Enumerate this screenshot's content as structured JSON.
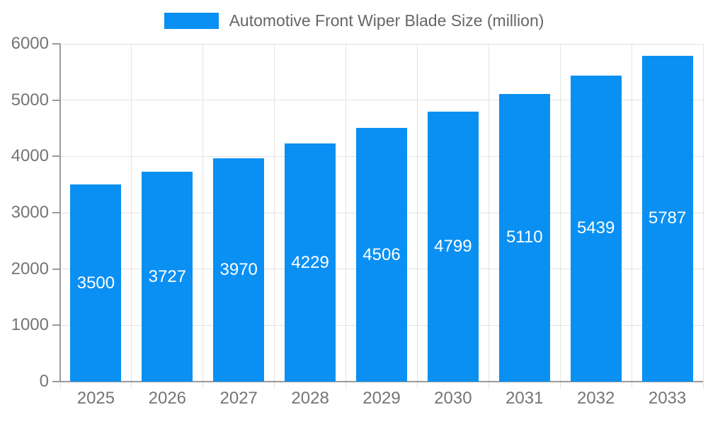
{
  "legend": {
    "label": "Automotive Front Wiper Blade Size (million)",
    "swatch_color": "#0a90f2"
  },
  "colors": {
    "bar": "#0a90f2",
    "axis": "#9a9a9a",
    "grid": "#e2e2e2",
    "tick_label": "#757575",
    "legend_label": "#666666",
    "value_label": "#ffffff",
    "background": "#ffffff"
  },
  "chart_data": {
    "type": "bar",
    "title": "Automotive Front Wiper Blade Size (million)",
    "categories": [
      "2025",
      "2026",
      "2027",
      "2028",
      "2029",
      "2030",
      "2031",
      "2032",
      "2033"
    ],
    "values": [
      3500,
      3727,
      3970,
      4229,
      4506,
      4799,
      5110,
      5439,
      5787
    ],
    "xlabel": "",
    "ylabel": "",
    "ylim": [
      0,
      6000
    ],
    "yticks": [
      0,
      1000,
      2000,
      3000,
      4000,
      5000,
      6000
    ],
    "grid": true,
    "legend_position": "top",
    "value_label_position": "inside-center",
    "bar_color": "#0a90f2"
  }
}
